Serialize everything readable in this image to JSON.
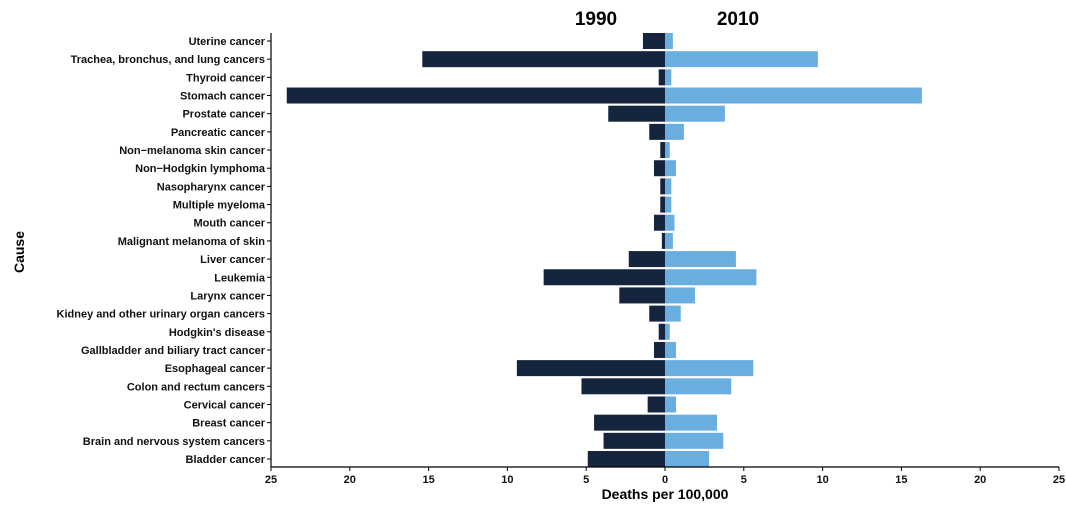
{
  "chart_data": {
    "type": "bar",
    "orientation": "horizontal",
    "layout": "population-pyramid",
    "categories": [
      "Uterine cancer",
      "Trachea, bronchus, and lung cancers",
      "Thyroid cancer",
      "Stomach cancer",
      "Prostate cancer",
      "Pancreatic cancer",
      "Non−melanoma skin cancer",
      "Non−Hodgkin lymphoma",
      "Nasopharynx cancer",
      "Multiple myeloma",
      "Mouth cancer",
      "Malignant melanoma of skin",
      "Liver cancer",
      "Leukemia",
      "Larynx cancer",
      "Kidney and other urinary organ cancers",
      "Hodgkin's disease",
      "Gallbladder and biliary tract cancer",
      "Esophageal cancer",
      "Colon and rectum cancers",
      "Cervical cancer",
      "Breast cancer",
      "Brain and nervous system cancers",
      "Bladder cancer"
    ],
    "series": [
      {
        "name": "1990",
        "color": "#14253d",
        "side": "left",
        "values": [
          1.4,
          15.4,
          0.4,
          24.0,
          3.6,
          1.0,
          0.3,
          0.7,
          0.3,
          0.3,
          0.7,
          0.2,
          2.3,
          7.7,
          2.9,
          1.0,
          0.4,
          0.7,
          9.4,
          5.3,
          1.1,
          4.5,
          3.9,
          4.9
        ]
      },
      {
        "name": "2010",
        "color": "#6aaee0",
        "side": "right",
        "values": [
          0.5,
          9.7,
          0.4,
          16.3,
          3.8,
          1.2,
          0.3,
          0.7,
          0.4,
          0.4,
          0.6,
          0.5,
          4.5,
          5.8,
          1.9,
          1.0,
          0.3,
          0.7,
          5.6,
          4.2,
          0.7,
          3.3,
          3.7,
          2.8
        ]
      }
    ],
    "xlabel": "Deaths per 100,000",
    "ylabel": "Cause",
    "xlim": [
      -25,
      25
    ],
    "xticks": [
      -25,
      -20,
      -15,
      -10,
      -5,
      0,
      5,
      10,
      15,
      20,
      25
    ],
    "xtick_labels": [
      "25",
      "20",
      "15",
      "10",
      "5",
      "0",
      "5",
      "10",
      "15",
      "20",
      "25"
    ],
    "grid": false,
    "legend": "none"
  }
}
